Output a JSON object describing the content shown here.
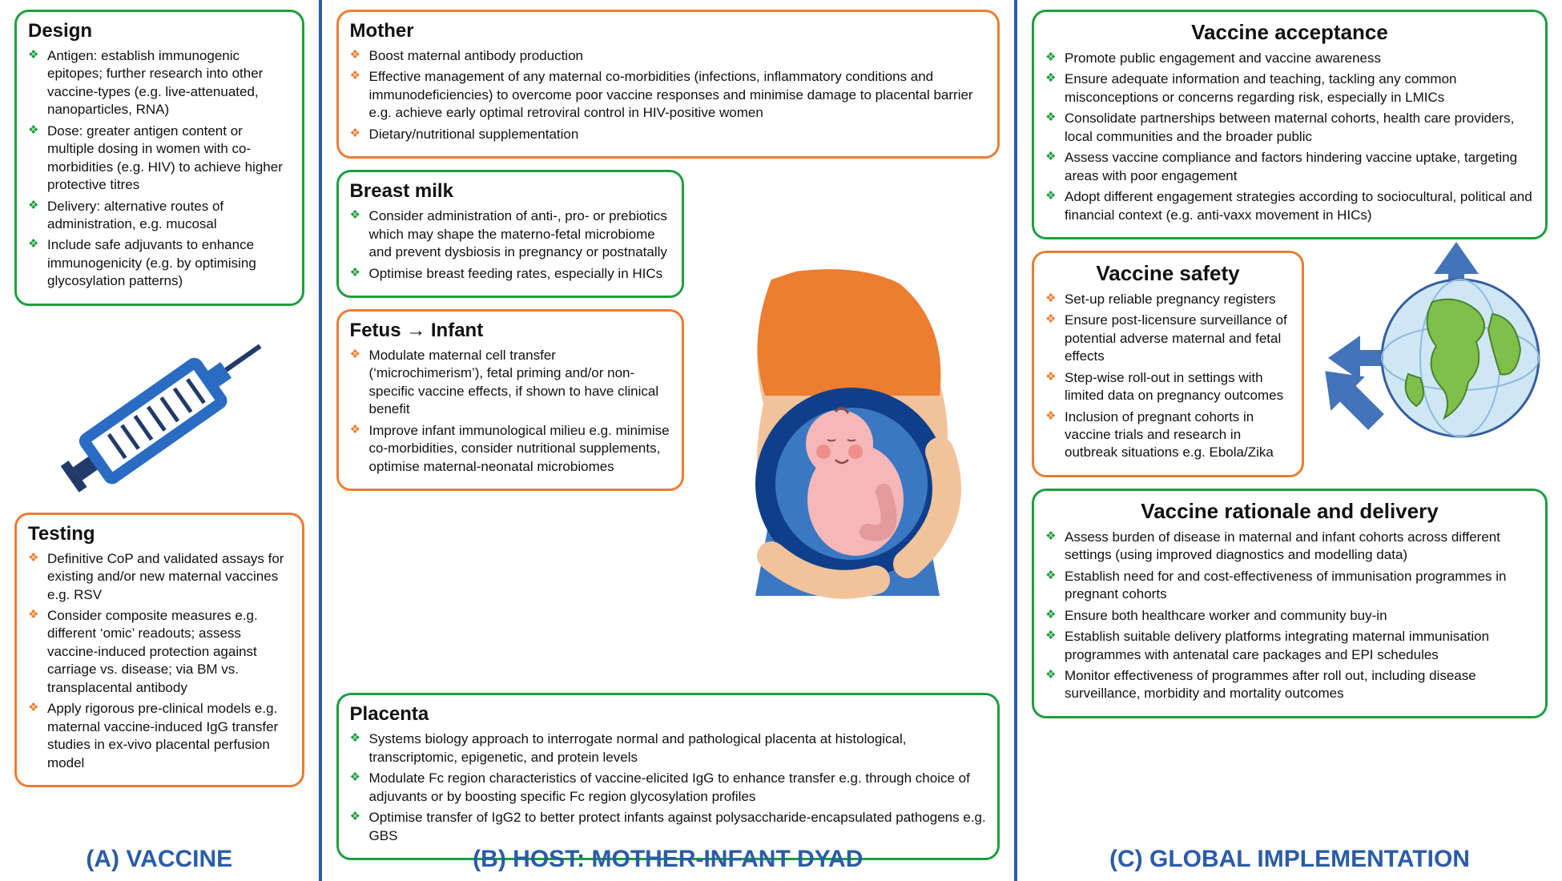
{
  "colors": {
    "green": "#1e9e3e",
    "orange": "#ed7d31",
    "blue": "#2a5ca8",
    "arrow": "#4373b8"
  },
  "columnA": {
    "label": "(A) VACCINE",
    "design": {
      "title": "Design",
      "items": [
        "Antigen: establish immunogenic epitopes; further research into other vaccine-types (e.g. live-attenuated, nanoparticles, RNA)",
        "Dose: greater antigen content or multiple dosing in women with co-morbidities (e.g. HIV) to achieve higher protective titres",
        "Delivery: alternative routes of administration, e.g. mucosal",
        "Include safe adjuvants to enhance immunogenicity (e.g. by optimising glycosylation patterns)"
      ]
    },
    "testing": {
      "title": "Testing",
      "items": [
        "Definitive CoP and validated assays for existing and/or new maternal vaccines e.g. RSV",
        "Consider composite measures e.g. different ‘omic’ readouts; assess vaccine-induced protection against carriage vs. disease; via BM vs. transplacental antibody",
        "Apply rigorous pre-clinical models e.g. maternal vaccine-induced IgG transfer studies in ex-vivo placental perfusion model"
      ]
    }
  },
  "columnB": {
    "label": "(B) HOST: MOTHER-INFANT DYAD",
    "mother": {
      "title": "Mother",
      "items": [
        "Boost maternal antibody production",
        "Effective management of any maternal co-morbidities (infections, inflammatory conditions and immunodeficiencies) to overcome poor vaccine responses and minimise damage to placental barrier e.g. achieve early optimal retroviral control in HIV-positive women",
        "Dietary/nutritional supplementation"
      ]
    },
    "breastmilk": {
      "title": "Breast milk",
      "items": [
        "Consider administration of anti-, pro- or prebiotics which may shape the materno-fetal microbiome and prevent dysbiosis in pregnancy or postnatally",
        "Optimise breast feeding rates, especially in HICs"
      ]
    },
    "fetus": {
      "title": "Fetus → Infant",
      "items": [
        "Modulate maternal cell transfer (‘microchimerism’), fetal priming and/or non-specific vaccine effects, if shown to have clinical benefit",
        "Improve infant immunological milieu e.g. minimise co-morbidities, consider nutritional supplements, optimise maternal-neonatal microbiomes"
      ]
    },
    "placenta": {
      "title": "Placenta",
      "items": [
        "Systems biology approach to interrogate normal and pathological placenta at histological, transcriptomic, epigenetic, and protein levels",
        "Modulate Fc region characteristics of vaccine-elicited IgG to enhance transfer e.g. through choice of adjuvants or by boosting specific Fc region glycosylation profiles",
        "Optimise transfer of IgG2 to better protect infants against polysaccharide-encapsulated pathogens e.g. GBS"
      ]
    }
  },
  "columnC": {
    "label": "(C) GLOBAL IMPLEMENTATION",
    "acceptance": {
      "title": "Vaccine acceptance",
      "items": [
        "Promote public engagement and vaccine awareness",
        "Ensure adequate information and teaching, tackling any common misconceptions or concerns regarding risk, especially in LMICs",
        "Consolidate partnerships between maternal cohorts, health care providers, local communities and the broader public",
        "Assess vaccine compliance and factors hindering vaccine uptake, targeting areas with poor engagement",
        "Adopt different engagement strategies according to sociocultural, political and financial context (e.g. anti-vaxx movement in HICs)"
      ]
    },
    "safety": {
      "title": "Vaccine safety",
      "items": [
        "Set-up reliable pregnancy registers",
        "Ensure post-licensure surveillance of potential adverse maternal and fetal effects",
        "Step-wise roll-out in settings with limited data on pregnancy outcomes",
        "Inclusion of pregnant cohorts in vaccine trials and research in outbreak situations e.g. Ebola/Zika"
      ]
    },
    "rationale": {
      "title": "Vaccine rationale and delivery",
      "items": [
        "Assess burden of disease in maternal and infant cohorts across different settings (using improved diagnostics and modelling data)",
        "Establish need for and cost-effectiveness of immunisation programmes in pregnant cohorts",
        "Ensure both healthcare worker and community buy-in",
        "Establish suitable delivery platforms integrating maternal immunisation programmes with antenatal care packages and EPI schedules",
        "Monitor effectiveness of programmes after roll out, including disease surveillance, morbidity and mortality outcomes"
      ]
    }
  }
}
